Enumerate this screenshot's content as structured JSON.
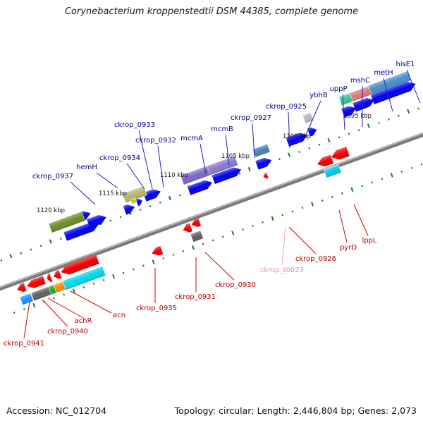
{
  "title": "Corynebacterium kroppenstedtii DSM 44385, complete genome",
  "accession": "Accession: NC_012704",
  "topology": "Topology: circular; Length: 2,446,804 bp; Genes: 2,073",
  "kbp_labels": [
    "1120 kbp",
    "1115 kbp",
    "1110 kbp",
    "1105 kbp",
    "1100 kbp",
    "1095 kbp"
  ],
  "forward_labels": [
    "ckrop_0937",
    "hemH",
    "ckrop_0934",
    "ckrop_0933",
    "ckrop_0932",
    "mcmA",
    "mcmB",
    "ckrop_0927",
    "ckrop_0925",
    "ybhB",
    "uppP",
    "mshC",
    "metH",
    "hisE1"
  ],
  "reverse_labels": [
    "ckrop_0941",
    "ckrop_0940",
    "acnR",
    "acn",
    "ckrop_0935",
    "ckrop_0931",
    "ckrop_0930",
    "ckrop_t0023",
    "ckrop_0926",
    "pyrD",
    "lppL"
  ],
  "colors": {
    "forward_gene": "#0000ee",
    "reverse_gene": "#ee0000",
    "forward_label": "#00008b",
    "reverse_label": "#b40000",
    "trna_label": "#e88bb0",
    "backbone": "#707070",
    "tick": "#1a7a1a"
  }
}
